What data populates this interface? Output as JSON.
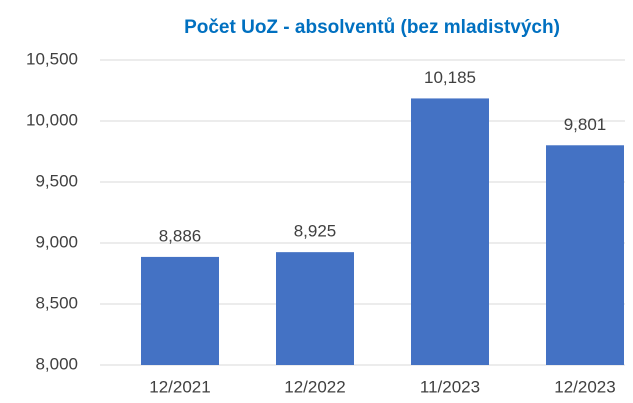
{
  "chart_data": {
    "type": "bar",
    "title": "Počet UoZ - absolventů (bez mladistvých)",
    "categories": [
      "12/2021",
      "12/2022",
      "11/2023",
      "12/2023"
    ],
    "values": [
      8886,
      8925,
      10185,
      9801
    ],
    "value_labels": [
      "8,886",
      "8,925",
      "10,185",
      "9,801"
    ],
    "color": "#4472c4",
    "ylim": [
      8000,
      10500
    ],
    "yticks": [
      {
        "value": 8000,
        "label": "8,000"
      },
      {
        "value": 8500,
        "label": "8,500"
      },
      {
        "value": 9000,
        "label": "9,000"
      },
      {
        "value": 9500,
        "label": "9,500"
      },
      {
        "value": 10000,
        "label": "10,000"
      },
      {
        "value": 10500,
        "label": "10,500"
      }
    ],
    "grid": true
  }
}
